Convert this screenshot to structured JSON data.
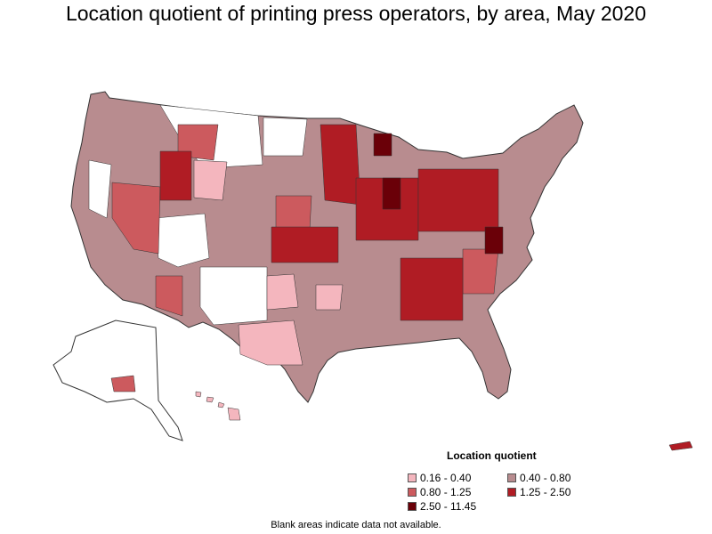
{
  "title": "Location quotient of printing press operators, by area, May 2020",
  "legend": {
    "title": "Location quotient",
    "items": [
      {
        "label": "0.16 - 0.40",
        "color": "#f4b6be"
      },
      {
        "label": "0.40 - 0.80",
        "color": "#b88c8f"
      },
      {
        "label": "0.80 - 1.25",
        "color": "#cc5a5e"
      },
      {
        "label": "1.25 - 2.50",
        "color": "#b01c24"
      },
      {
        "label": "2.50 - 11.45",
        "color": "#6a0008"
      }
    ]
  },
  "footnote": "Blank areas indicate data not available.",
  "colors": {
    "no_data": "#ffffff",
    "border": "#333333"
  }
}
